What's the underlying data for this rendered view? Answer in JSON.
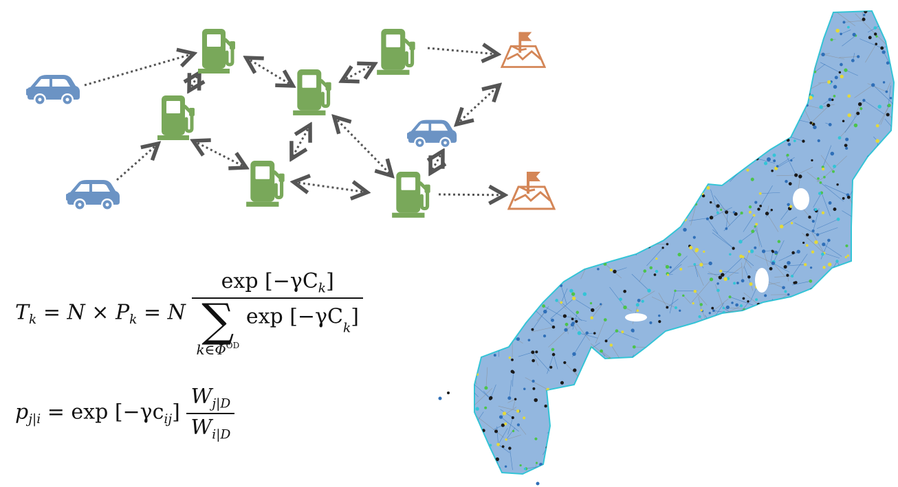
{
  "diagram": {
    "icons": [
      {
        "kind": "car",
        "name": "car-1-icon"
      },
      {
        "kind": "car",
        "name": "car-2-icon"
      },
      {
        "kind": "car",
        "name": "car-3-icon"
      },
      {
        "kind": "station",
        "name": "station-1-icon"
      },
      {
        "kind": "station",
        "name": "station-2-icon"
      },
      {
        "kind": "station",
        "name": "station-3-icon"
      },
      {
        "kind": "station",
        "name": "station-4-icon"
      },
      {
        "kind": "station",
        "name": "station-5-icon"
      },
      {
        "kind": "station",
        "name": "station-6-icon"
      },
      {
        "kind": "destination",
        "name": "destination-1-icon"
      },
      {
        "kind": "destination",
        "name": "destination-2-icon"
      }
    ],
    "colors": {
      "car": "#6b93c4",
      "station": "#79a85a",
      "destination": "#d48657",
      "arrow": "#555555",
      "map_node_dark": "#1a1a1a",
      "map_node_blue": "#2f6fb8",
      "map_node_cyan": "#33c4d6",
      "map_node_green": "#4cc34c",
      "map_node_yellow": "#e3d93a",
      "map_edge": "#8a8a8a"
    }
  },
  "equations": {
    "eq1": {
      "lhs_T": "T",
      "lhs_k": "k",
      "eq_sign": " = ",
      "N": "N",
      "times": " × ",
      "P": "P",
      "P_k": "k",
      "eq_sign2": " = ",
      "N2": "N",
      "num_text": "exp [−γC",
      "num_k": "k",
      "num_close": "]",
      "sum_symbol": "∑",
      "sum_under_k": "k∈Φ",
      "sum_under_sup": "OD",
      "den_text": "exp [−γC",
      "den_k": "k",
      "den_close": "]"
    },
    "eq2": {
      "lhs_p": "p",
      "lhs_sub": "j|i",
      "eq_sign": " = ",
      "exp_text": "exp [−γc",
      "exp_sub": "ij",
      "exp_close": "]",
      "num_W": "W",
      "num_sub": "j|D",
      "den_W": "W",
      "den_sub": "i|D"
    }
  }
}
